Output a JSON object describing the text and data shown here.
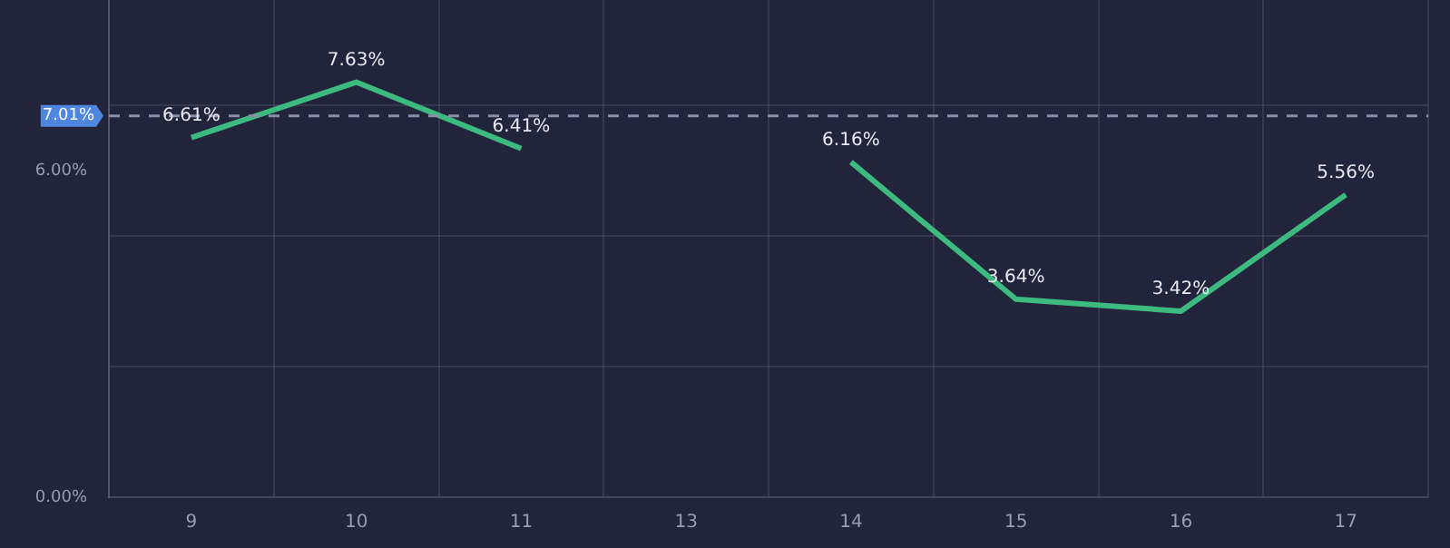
{
  "chart_data": {
    "type": "line",
    "categories": [
      "9",
      "10",
      "11",
      "13",
      "14",
      "15",
      "16",
      "17"
    ],
    "series": [
      {
        "color": "#3dba7f",
        "values": [
          6.61,
          7.63,
          6.41,
          null,
          6.16,
          3.64,
          3.42,
          5.56
        ],
        "value_labels": [
          "6.61%",
          "7.63%",
          "6.41%",
          null,
          "6.16%",
          "3.64%",
          "3.42%",
          "5.56%"
        ]
      }
    ],
    "ylim": [
      0,
      9.14
    ],
    "yticks": [
      {
        "value": 0,
        "label": "0.00%"
      },
      {
        "value": 2.4,
        "label": null
      },
      {
        "value": 4.8,
        "label": null
      },
      {
        "value": 6,
        "label": "6.00%"
      },
      {
        "value": 7.2,
        "label": null
      }
    ],
    "grid": true,
    "marker": "none",
    "line_style": "solid",
    "ref_lines": [
      {
        "axis": "y",
        "value": 7.01,
        "label": "7.01%",
        "color": "#8c8ea8",
        "line_style": "dashed"
      }
    ]
  }
}
